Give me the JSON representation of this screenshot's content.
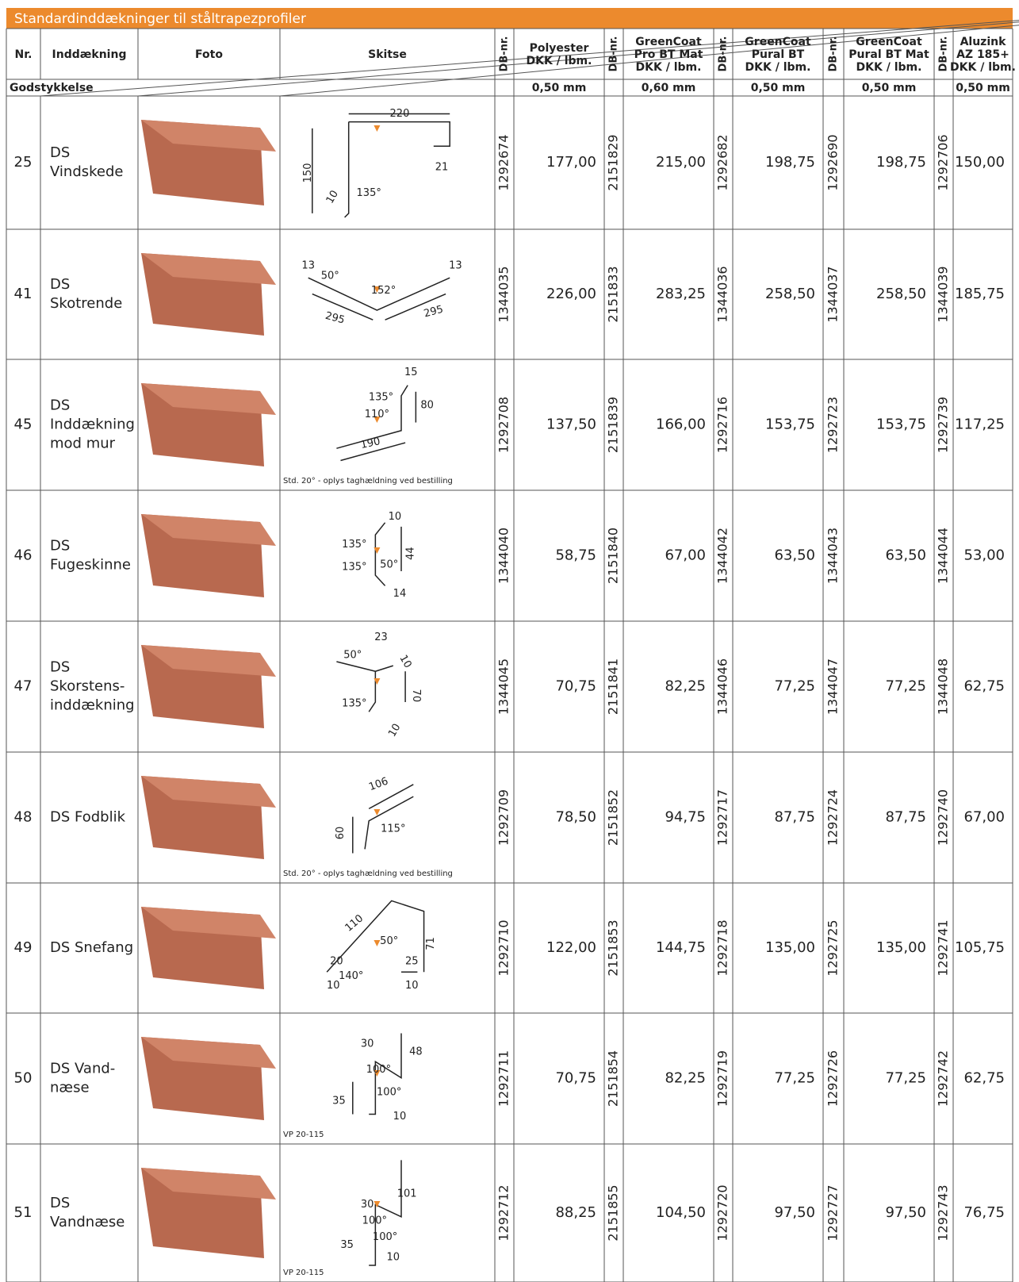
{
  "header": {
    "title": "Standardinddækninger til ståltrapezprofiler"
  },
  "table": {
    "columns": [
      "Nr.",
      "Inddækning",
      "Foto",
      "Skitse"
    ],
    "thickness_label": "Godstykkelse",
    "price_columns": [
      {
        "db": "DB-nr.",
        "name": [
          "Polyester",
          "DKK / lbm."
        ],
        "thickness": "0,50 mm"
      },
      {
        "db": "DB-nr.",
        "name": [
          "GreenCoat",
          "Pro BT Mat",
          "DKK / lbm."
        ],
        "thickness": "0,60 mm"
      },
      {
        "db": "DB-nr.",
        "name": [
          "GreenCoat",
          "Pural BT",
          "DKK / lbm."
        ],
        "thickness": "0,50 mm"
      },
      {
        "db": "DB-nr.",
        "name": [
          "GreenCoat",
          "Pural BT Mat",
          "DKK / lbm."
        ],
        "thickness": "0,50 mm"
      },
      {
        "db": "DB-nr.",
        "name": [
          "Aluzink",
          "AZ 185+",
          "DKK / lbm."
        ],
        "thickness": "0,50 mm"
      }
    ],
    "rows": [
      {
        "nr": "25",
        "name": [
          "DS",
          "Vindskede"
        ],
        "sketch": [
          "220",
          "150",
          "21",
          "10",
          "135°"
        ],
        "items": [
          {
            "db": "1292674",
            "price": "177,00"
          },
          {
            "db": "2151829",
            "price": "215,00"
          },
          {
            "db": "1292682",
            "price": "198,75"
          },
          {
            "db": "1292690",
            "price": "198,75"
          },
          {
            "db": "1292706",
            "price": "150,00"
          }
        ]
      },
      {
        "nr": "41",
        "name": [
          "DS",
          "Skotrende"
        ],
        "sketch": [
          "13",
          "50°",
          "152°",
          "295",
          "295",
          "13"
        ],
        "items": [
          {
            "db": "1344035",
            "price": "226,00"
          },
          {
            "db": "2151833",
            "price": "283,25"
          },
          {
            "db": "1344036",
            "price": "258,50"
          },
          {
            "db": "1344037",
            "price": "258,50"
          },
          {
            "db": "1344039",
            "price": "185,75"
          }
        ]
      },
      {
        "nr": "45",
        "name": [
          "DS",
          "Inddækning",
          "mod mur"
        ],
        "sketch": [
          "15",
          "135°",
          "80",
          "110°",
          "190"
        ],
        "note": "Std. 20° - oplys taghældning ved bestilling",
        "items": [
          {
            "db": "1292708",
            "price": "137,50"
          },
          {
            "db": "2151839",
            "price": "166,00"
          },
          {
            "db": "1292716",
            "price": "153,75"
          },
          {
            "db": "1292723",
            "price": "153,75"
          },
          {
            "db": "1292739",
            "price": "117,25"
          }
        ]
      },
      {
        "nr": "46",
        "name": [
          "DS",
          "Fugeskinne"
        ],
        "sketch": [
          "10",
          "135°",
          "44",
          "50°",
          "135°",
          "14"
        ],
        "items": [
          {
            "db": "1344040",
            "price": "58,75"
          },
          {
            "db": "2151840",
            "price": "67,00"
          },
          {
            "db": "1344042",
            "price": "63,50"
          },
          {
            "db": "1344043",
            "price": "63,50"
          },
          {
            "db": "1344044",
            "price": "53,00"
          }
        ]
      },
      {
        "nr": "47",
        "name": [
          "DS",
          "Skorstens-",
          "inddækning"
        ],
        "sketch": [
          "23",
          "50°",
          "10",
          "70",
          "135°",
          "10"
        ],
        "items": [
          {
            "db": "1344045",
            "price": "70,75"
          },
          {
            "db": "2151841",
            "price": "82,25"
          },
          {
            "db": "1344046",
            "price": "77,25"
          },
          {
            "db": "1344047",
            "price": "77,25"
          },
          {
            "db": "1344048",
            "price": "62,75"
          }
        ]
      },
      {
        "nr": "48",
        "name": [
          "DS Fodblik"
        ],
        "sketch": [
          "106",
          "60",
          "115°"
        ],
        "note": "Std. 20° - oplys taghældning ved bestilling",
        "items": [
          {
            "db": "1292709",
            "price": "78,50"
          },
          {
            "db": "2151852",
            "price": "94,75"
          },
          {
            "db": "1292717",
            "price": "87,75"
          },
          {
            "db": "1292724",
            "price": "87,75"
          },
          {
            "db": "1292740",
            "price": "67,00"
          }
        ]
      },
      {
        "nr": "49",
        "name": [
          "DS Snefang"
        ],
        "sketch": [
          "110",
          "50°",
          "71",
          "20",
          "25",
          "140°",
          "10",
          "10"
        ],
        "items": [
          {
            "db": "1292710",
            "price": "122,00"
          },
          {
            "db": "2151853",
            "price": "144,75"
          },
          {
            "db": "1292718",
            "price": "135,00"
          },
          {
            "db": "1292725",
            "price": "135,00"
          },
          {
            "db": "1292741",
            "price": "105,75"
          }
        ]
      },
      {
        "nr": "50",
        "name": [
          "DS Vand-",
          "næse"
        ],
        "sketch": [
          "30",
          "48",
          "100°",
          "100°",
          "35",
          "10"
        ],
        "note": "VP 20-115",
        "items": [
          {
            "db": "1292711",
            "price": "70,75"
          },
          {
            "db": "2151854",
            "price": "82,25"
          },
          {
            "db": "1292719",
            "price": "77,25"
          },
          {
            "db": "1292726",
            "price": "77,25"
          },
          {
            "db": "1292742",
            "price": "62,75"
          }
        ]
      },
      {
        "nr": "51",
        "name": [
          "DS",
          "Vandnæse"
        ],
        "sketch": [
          "101",
          "30",
          "100°",
          "100°",
          "35",
          "10"
        ],
        "note": "VP 20-115",
        "items": [
          {
            "db": "1292712",
            "price": "88,25"
          },
          {
            "db": "2151855",
            "price": "104,50"
          },
          {
            "db": "1292720",
            "price": "97,50"
          },
          {
            "db": "1292727",
            "price": "97,50"
          },
          {
            "db": "1292743",
            "price": "76,75"
          }
        ]
      }
    ]
  }
}
